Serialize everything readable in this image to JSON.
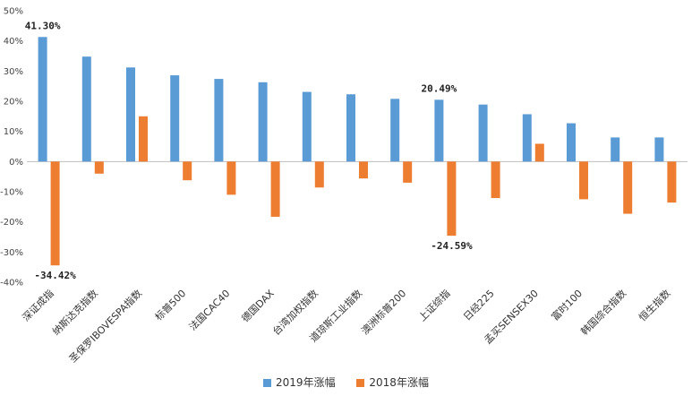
{
  "chart_data": {
    "type": "bar",
    "categories": [
      "深证成指",
      "纳斯达克指数",
      "圣保罗IBOVESPA指数",
      "标普500",
      "法国CAC40",
      "德国DAX",
      "台湾加权指数",
      "道琼斯工业指数",
      "澳洲标普200",
      "上证综指",
      "日经225",
      "孟买SENSEX30",
      "富时100",
      "韩国综合指数",
      "恒生指数"
    ],
    "series": [
      {
        "name": "2019年涨幅",
        "color": "#5B9BD5",
        "values": [
          41.3,
          34.8,
          31.2,
          28.6,
          27.4,
          26.3,
          23.1,
          22.3,
          20.8,
          20.49,
          18.9,
          15.7,
          12.7,
          8.0,
          8.0
        ]
      },
      {
        "name": "2018年涨幅",
        "color": "#ED7D31",
        "values": [
          -34.42,
          -4.0,
          15.0,
          -6.2,
          -11.0,
          -18.3,
          -8.6,
          -5.6,
          -7.0,
          -24.59,
          -12.1,
          5.9,
          -12.5,
          -17.3,
          -13.6
        ]
      }
    ],
    "ylim": [
      -40,
      50
    ],
    "yticks": [
      -40,
      -30,
      -20,
      -10,
      0,
      10,
      20,
      30,
      40,
      50
    ],
    "ytick_labels": [
      "-40%",
      "-30%",
      "-20%",
      "-10%",
      "0%",
      "10%",
      "20%",
      "30%",
      "40%",
      "50%"
    ],
    "annotations": [
      {
        "text": "41.30%",
        "series": 0,
        "index": 0,
        "pos": "above"
      },
      {
        "text": "-34.42%",
        "series": 1,
        "index": 0,
        "pos": "below"
      },
      {
        "text": "20.49%",
        "series": 0,
        "index": 9,
        "pos": "above"
      },
      {
        "text": "-24.59%",
        "series": 1,
        "index": 9,
        "pos": "below"
      }
    ],
    "grid": false,
    "legend": "bottom",
    "title": ""
  }
}
